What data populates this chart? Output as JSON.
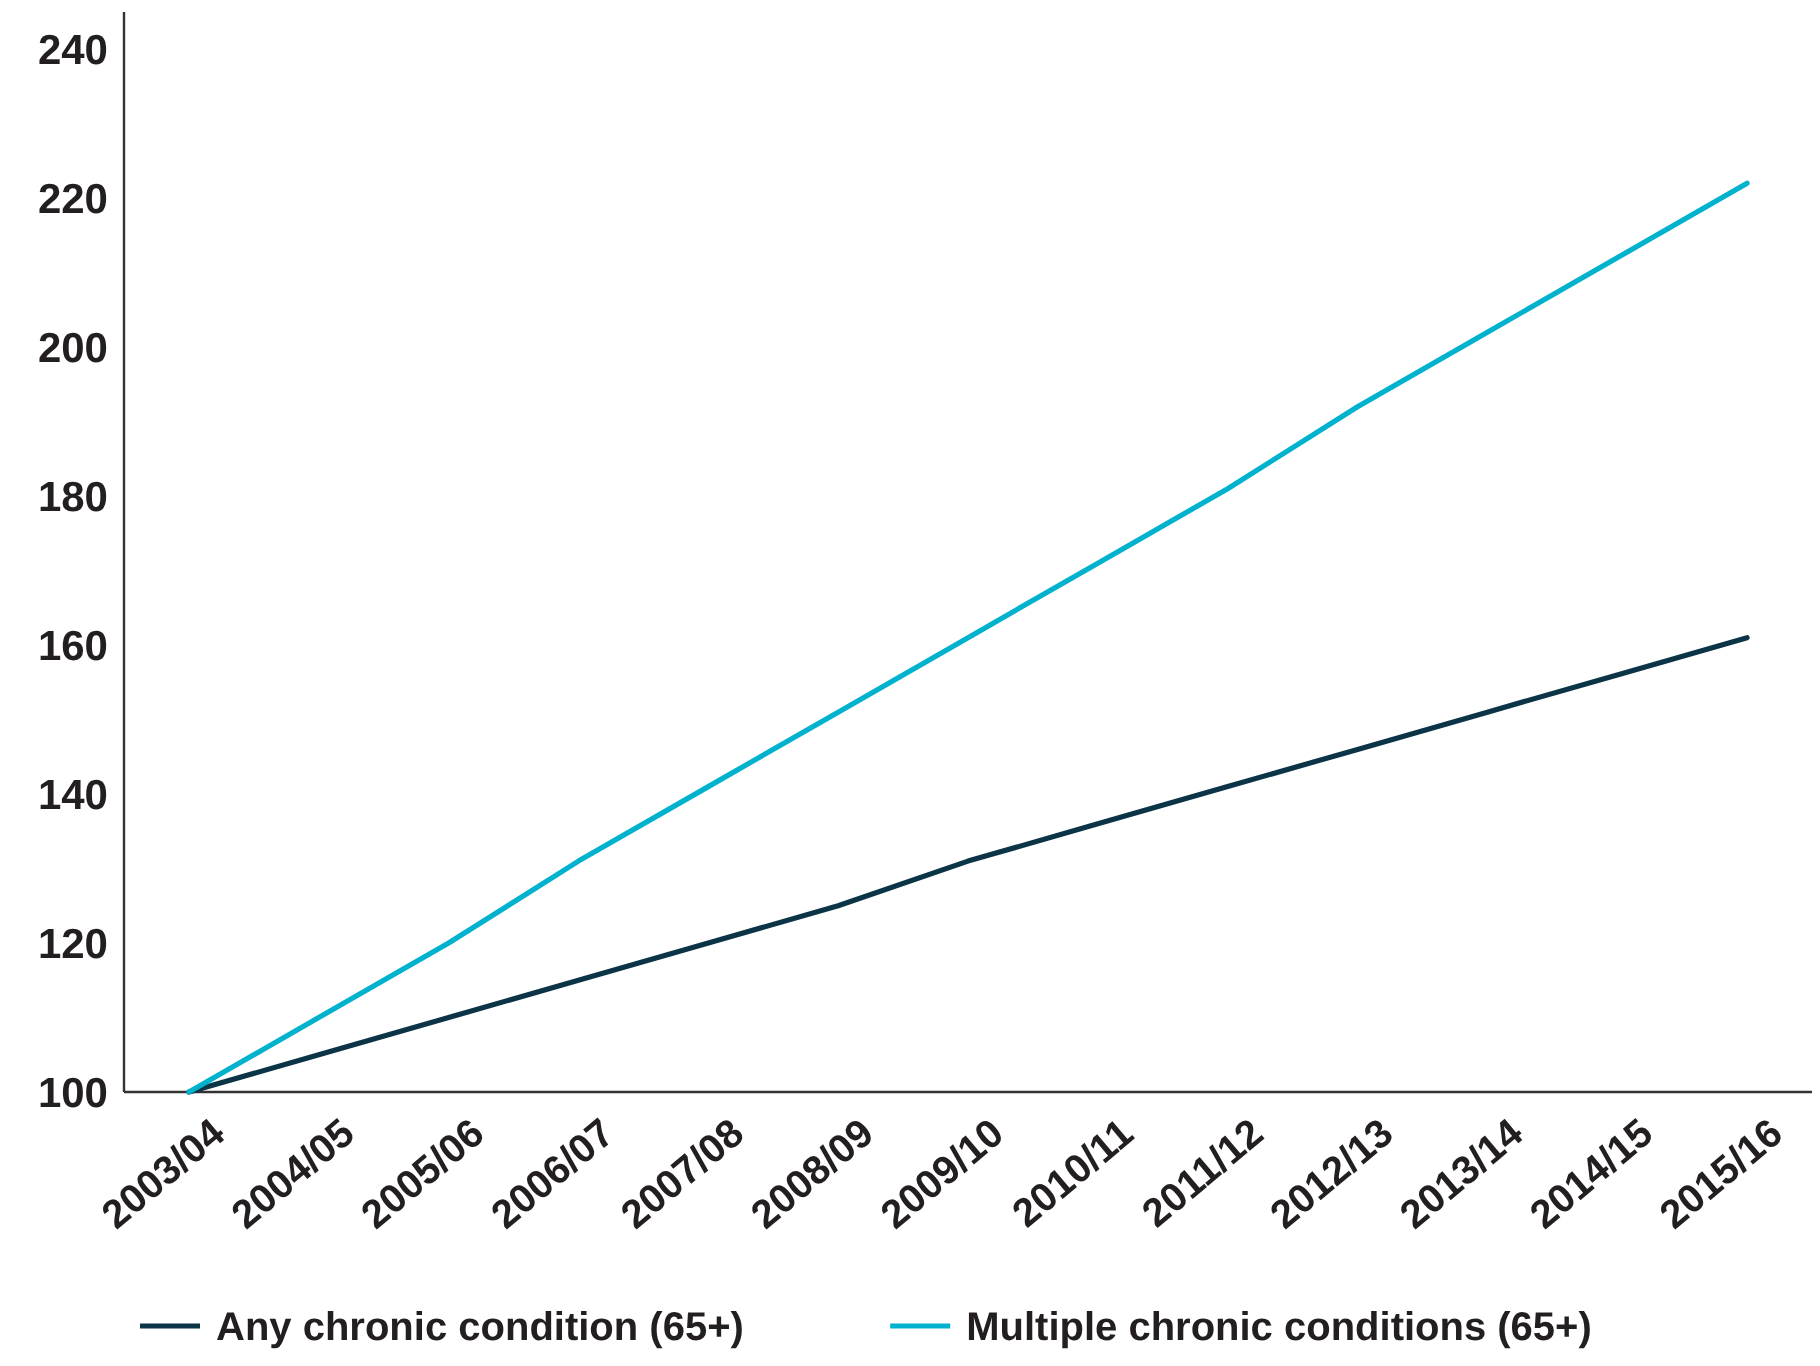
{
  "chart_data": {
    "type": "line",
    "categories": [
      "2003/04",
      "2004/05",
      "2005/06",
      "2006/07",
      "2007/08",
      "2008/09",
      "2009/10",
      "2010/11",
      "2011/12",
      "2012/13",
      "2013/14",
      "2014/15",
      "2015/16"
    ],
    "series": [
      {
        "name": "Any chronic condition (65+)",
        "color": "#0b3447",
        "values": [
          100,
          105,
          110,
          115,
          120,
          125,
          131,
          136,
          141,
          146,
          151,
          156,
          161
        ]
      },
      {
        "name": "Multiple chronic conditions (65+)",
        "color": "#00b2ce",
        "values": [
          100,
          110,
          120,
          131,
          141,
          151,
          161,
          171,
          181,
          192,
          202,
          212,
          222
        ]
      }
    ],
    "ylim": [
      100,
      245
    ],
    "yticks": [
      100,
      120,
      140,
      160,
      180,
      200,
      220,
      240
    ],
    "grid": false,
    "legend": "bottom",
    "marker": "none",
    "line_style": "solid"
  }
}
